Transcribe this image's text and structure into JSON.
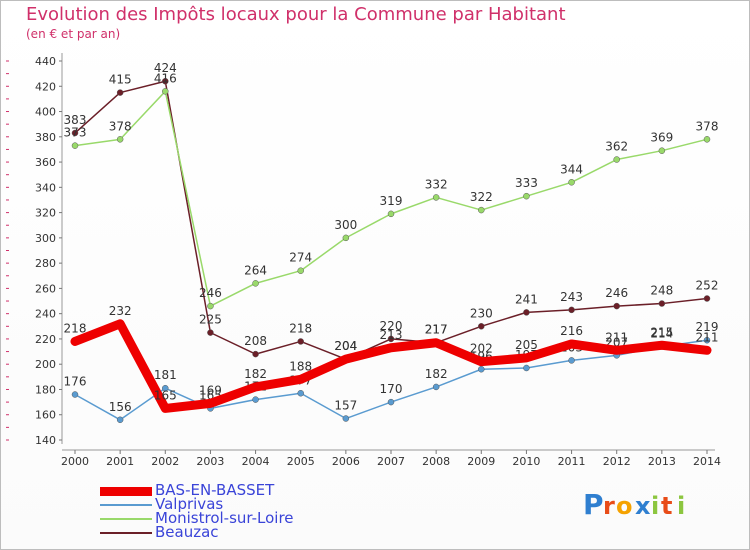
{
  "header": {
    "title": "Evolution des Impôts locaux pour la Commune par Habitant",
    "subtitle": "(en € et par an)"
  },
  "chart_data": {
    "type": "line",
    "title": "Evolution des Impôts locaux pour la Commune par Habitant",
    "subtitle": "(en € et par an)",
    "x": [
      2000,
      2001,
      2002,
      2003,
      2004,
      2005,
      2006,
      2007,
      2008,
      2009,
      2010,
      2011,
      2012,
      2013,
      2014
    ],
    "ylim": [
      140,
      440
    ],
    "yticks": [
      140,
      160,
      180,
      200,
      220,
      240,
      260,
      280,
      300,
      320,
      340,
      360,
      380,
      400,
      420,
      440
    ],
    "grid": false,
    "legend_position": "bottom-left",
    "series": [
      {
        "name": "Beauzac",
        "color": "#6b1f28",
        "values": [
          383,
          415,
          424,
          225,
          208,
          218,
          204,
          220,
          217,
          230,
          241,
          243,
          246,
          248,
          252
        ],
        "labels": [
          "383",
          "415",
          "424",
          "225",
          "208",
          "218",
          "204",
          "220",
          "217",
          "230",
          "241",
          "243",
          "246",
          "248",
          "252"
        ]
      },
      {
        "name": "Monistrol-sur-Loire",
        "color": "#99d96a",
        "values": [
          373,
          378,
          416,
          246,
          264,
          274,
          300,
          319,
          332,
          322,
          333,
          344,
          362,
          369,
          378
        ],
        "labels": [
          "373",
          "378",
          "416",
          "246",
          "264",
          "274",
          "300",
          "319",
          "332",
          "322",
          "333",
          "344",
          "362",
          "369",
          "378"
        ]
      },
      {
        "name": "Valprivas",
        "color": "#5a9bd0",
        "values": [
          176,
          156,
          181,
          165,
          172,
          177,
          157,
          170,
          182,
          196,
          197,
          203,
          207,
          214,
          219
        ],
        "labels": [
          "176",
          "156",
          "181",
          "165",
          "172",
          "177",
          "157",
          "170",
          "182",
          "196",
          "197",
          "203",
          "207",
          "214",
          "219"
        ]
      },
      {
        "name": "BAS-EN-BASSET",
        "color": "#ee0000",
        "values": [
          218,
          232,
          165,
          169,
          182,
          188,
          204,
          213,
          217,
          202,
          205,
          216,
          211,
          215,
          211
        ],
        "labels": [
          "218",
          "232",
          "165",
          "169",
          "182",
          "188",
          "204",
          "213",
          "217",
          "202",
          "205",
          "216",
          "211",
          "215",
          "211"
        ]
      }
    ]
  },
  "legend": {
    "items": [
      {
        "label": "BAS-EN-BASSET",
        "color": "#ee0000"
      },
      {
        "label": "Valprivas",
        "color": "#5a9bd0"
      },
      {
        "label": "Monistrol-sur-Loire",
        "color": "#99d96a"
      },
      {
        "label": "Beauzac",
        "color": "#6b1f28"
      }
    ]
  },
  "logo": {
    "letters": [
      "P",
      "r",
      "o",
      "x",
      "i",
      "t",
      "i"
    ],
    "colors": [
      "#2f7fd0",
      "#e84c18",
      "#f5a200",
      "#2f7fd0",
      "#8cc63f",
      "#e84c18",
      "#8cc63f"
    ]
  }
}
